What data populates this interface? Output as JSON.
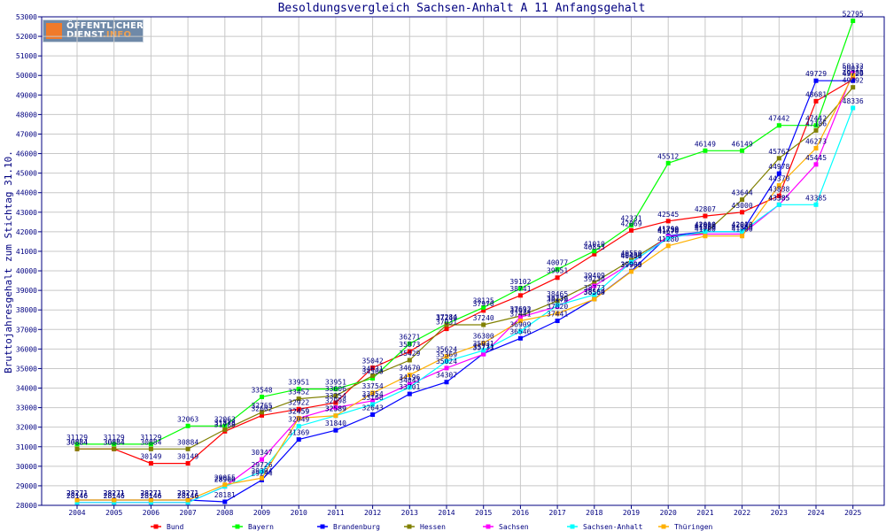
{
  "chart_data": {
    "type": "line",
    "title": "Besoldungsvergleich Sachsen-Anhalt A 11 Anfangsgehalt",
    "xlabel": "",
    "ylabel": "Bruttojahresgehalt zum Stichtag 31.10.",
    "ylim": [
      28000,
      53000
    ],
    "ytick_step": 1000,
    "grid": true,
    "legend_position": "bottom",
    "categories": [
      "2004",
      "2005",
      "2006",
      "2007",
      "2008",
      "2009",
      "2010",
      "2011",
      "2012",
      "2013",
      "2014",
      "2015",
      "2016",
      "2017",
      "2018",
      "2019",
      "2020",
      "2021",
      "2022",
      "2023",
      "2024",
      "2025"
    ],
    "series": [
      {
        "name": "Bund",
        "color": "#ff0000",
        "values": [
          30884,
          30884,
          30149,
          30149,
          31788,
          32602,
          32922,
          33254,
          35042,
          35873,
          37031,
          37970,
          38741,
          39651,
          40853,
          42069,
          42545,
          42807,
          43000,
          43838,
          48681,
          49788
        ]
      },
      {
        "name": "Bayern",
        "color": "#00ff00",
        "values": [
          31129,
          31129,
          31129,
          32063,
          32063,
          33548,
          33951,
          33951,
          34500,
          36271,
          37284,
          38125,
          39102,
          40077,
          41010,
          42331,
          45512,
          46149,
          46149,
          47442,
          47442,
          52795
        ]
      },
      {
        "name": "Brandenburg",
        "color": "#0000ff",
        "values": [
          28271,
          28271,
          28271,
          28271,
          28181,
          29294,
          31369,
          31840,
          32643,
          33701,
          34307,
          35771,
          36546,
          37441,
          38564,
          39990,
          41790,
          42000,
          42000,
          44978,
          49729,
          49729
        ]
      },
      {
        "name": "Hessen",
        "color": "#808000",
        "values": [
          30884,
          30884,
          30884,
          30884,
          31878,
          32765,
          33452,
          33606,
          34631,
          35429,
          37240,
          37240,
          37692,
          38465,
          39409,
          40550,
          41750,
          41920,
          43644,
          45762,
          47186,
          49392
        ]
      },
      {
        "name": "Sachsen",
        "color": "#ff00ff",
        "values": [
          28146,
          28146,
          28146,
          28146,
          28966,
          30347,
          32459,
          32998,
          33354,
          34196,
          35024,
          35733,
          37632,
          38170,
          39230,
          40400,
          41750,
          41880,
          41880,
          43385,
          45445,
          50132
        ]
      },
      {
        "name": "Sachsen-Anhalt",
        "color": "#00ffff",
        "values": [
          28146,
          28146,
          28146,
          28146,
          28966,
          29726,
          32049,
          32589,
          33168,
          34041,
          35369,
          35931,
          36909,
          38239,
          38773,
          40450,
          41670,
          42010,
          42010,
          43385,
          43385,
          48336
        ]
      },
      {
        "name": "Thüringen",
        "color": "#ffb000",
        "values": [
          28271,
          28271,
          28271,
          28271,
          29055,
          29394,
          32459,
          32589,
          33754,
          34670,
          35624,
          36300,
          37441,
          37820,
          38550,
          39963,
          41280,
          41780,
          41780,
          44370,
          46273,
          50012
        ]
      }
    ]
  },
  "logo": {
    "line1": "ÖFFENTLICHER",
    "line2_a": "DIENST",
    "line2_b": ".INFO"
  }
}
